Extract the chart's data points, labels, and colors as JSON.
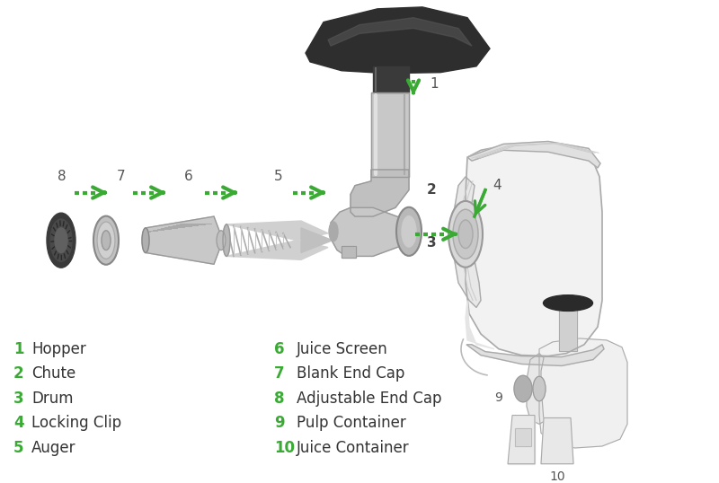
{
  "bg_color": "#ffffff",
  "green": "#3aaa35",
  "gray_light": "#efefef",
  "gray_mid": "#cccccc",
  "gray_dark": "#999999",
  "gray_darker": "#777777",
  "dark": "#444444",
  "darker": "#2a2a2a",
  "labels_left": [
    {
      "num": "1",
      "text": "Hopper"
    },
    {
      "num": "2",
      "text": "Chute"
    },
    {
      "num": "3",
      "text": "Drum"
    },
    {
      "num": "4",
      "text": "Locking Clip"
    },
    {
      "num": "5",
      "text": "Auger"
    }
  ],
  "labels_right": [
    {
      "num": "6",
      "text": "Juice Screen"
    },
    {
      "num": "7",
      "text": "Blank End Cap"
    },
    {
      "num": "8",
      "text": "Adjustable End Cap"
    },
    {
      "num": "9",
      "text": "Pulp Container"
    },
    {
      "num": "10",
      "text": "Juice Container"
    }
  ]
}
